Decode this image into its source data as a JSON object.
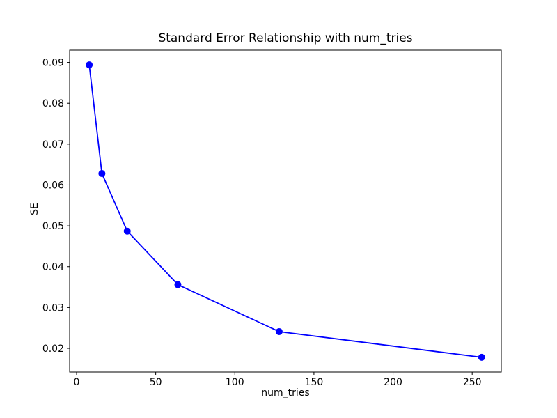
{
  "figure": {
    "background": "#ffffff"
  },
  "chart_data": {
    "type": "line",
    "title": "Standard Error Relationship with num_tries",
    "xlabel": "num_tries",
    "ylabel": "SE",
    "x": [
      8,
      16,
      32,
      64,
      128,
      256
    ],
    "y": [
      0.0894,
      0.0628,
      0.0487,
      0.0356,
      0.0241,
      0.0178
    ],
    "x_ticks": [
      0,
      50,
      100,
      150,
      200,
      250
    ],
    "x_tick_labels": [
      "0",
      "50",
      "100",
      "150",
      "200",
      "250"
    ],
    "y_ticks": [
      0.02,
      0.03,
      0.04,
      0.05,
      0.06,
      0.07,
      0.08,
      0.09
    ],
    "y_tick_labels": [
      "0.02",
      "0.03",
      "0.04",
      "0.05",
      "0.06",
      "0.07",
      "0.08",
      "0.09"
    ],
    "xlim": [
      -4.4,
      268.4
    ],
    "ylim": [
      0.0142,
      0.093
    ],
    "grid": false,
    "legend": null,
    "line_color": "#0000ff",
    "marker": "circle",
    "marker_color": "#0000ff",
    "marker_radius": 5,
    "line_width": 1.8,
    "axis_color": "#000000"
  }
}
